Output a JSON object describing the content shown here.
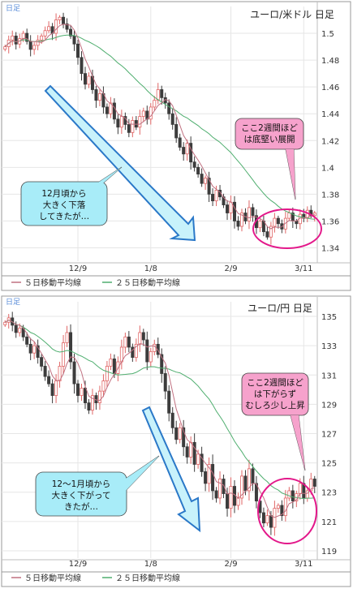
{
  "chart_data": [
    {
      "type": "candlestick",
      "corner_label": "日足",
      "title": "ユーロ/米ドル  日足",
      "ylim": [
        1.33,
        1.52
      ],
      "y_ticks": [
        "1.5",
        "1.48",
        "1.46",
        "1.44",
        "1.42",
        "1.4",
        "1.38",
        "1.36",
        "1.34"
      ],
      "y_tick_values": [
        1.5,
        1.48,
        1.46,
        1.44,
        1.42,
        1.4,
        1.38,
        1.36,
        1.34
      ],
      "x_ticks": [
        "12/9",
        "1/8",
        "2/9",
        "3/11"
      ],
      "x_tick_index": [
        20,
        40,
        62,
        82
      ],
      "n_days": 86,
      "closes": [
        1.49,
        1.495,
        1.498,
        1.492,
        1.496,
        1.5,
        1.494,
        1.488,
        1.491,
        1.495,
        1.498,
        1.502,
        1.505,
        1.5,
        1.51,
        1.512,
        1.507,
        1.503,
        1.498,
        1.492,
        1.482,
        1.47,
        1.462,
        1.468,
        1.458,
        1.45,
        1.455,
        1.445,
        1.44,
        1.448,
        1.436,
        1.43,
        1.438,
        1.432,
        1.426,
        1.435,
        1.43,
        1.438,
        1.442,
        1.436,
        1.445,
        1.45,
        1.458,
        1.452,
        1.448,
        1.44,
        1.432,
        1.422,
        1.415,
        1.41,
        1.418,
        1.404,
        1.4,
        1.395,
        1.388,
        1.392,
        1.38,
        1.375,
        1.383,
        1.378,
        1.372,
        1.366,
        1.374,
        1.36,
        1.356,
        1.366,
        1.36,
        1.37,
        1.364,
        1.355,
        1.36,
        1.352,
        1.348,
        1.356,
        1.362,
        1.358,
        1.354,
        1.362,
        1.366,
        1.36,
        1.358,
        1.365,
        1.362,
        1.368,
        1.364,
        1.366
      ],
      "legend": [
        {
          "label": "５日移動平均線",
          "color": "#c07080"
        },
        {
          "label": "２５日移動平均線",
          "color": "#4fae6f"
        }
      ],
      "callout_left": [
        "12月頃から",
        "大きく下落",
        "してきたが…"
      ],
      "callout_right": [
        "ここ2週間ほど",
        "は底堅い展開"
      ]
    },
    {
      "type": "candlestick",
      "corner_label": "日足",
      "title": "ユーロ/円  日足",
      "ylim": [
        118.5,
        136
      ],
      "y_ticks": [
        "135",
        "133",
        "131",
        "129",
        "127",
        "125",
        "123",
        "121",
        "119"
      ],
      "y_tick_values": [
        135,
        133,
        131,
        129,
        127,
        125,
        123,
        121,
        119
      ],
      "x_ticks": [
        "12/9",
        "1/8",
        "2/9",
        "3/11"
      ],
      "x_tick_index": [
        20,
        40,
        62,
        82
      ],
      "n_days": 86,
      "closes": [
        134.6,
        134.9,
        134.4,
        133.9,
        134.2,
        133.6,
        133.1,
        132.5,
        133.0,
        132.2,
        131.6,
        130.9,
        130.4,
        129.6,
        130.6,
        131.6,
        133.2,
        133.9,
        131.9,
        130.4,
        129.6,
        130.1,
        129.1,
        128.6,
        129.6,
        129.1,
        129.9,
        130.6,
        131.6,
        132.1,
        131.1,
        131.9,
        132.9,
        133.6,
        132.9,
        132.2,
        133.1,
        133.9,
        133.4,
        131.9,
        132.6,
        133.1,
        132.4,
        131.1,
        129.9,
        128.4,
        127.4,
        126.6,
        127.4,
        126.1,
        125.4,
        126.4,
        124.9,
        125.6,
        124.4,
        123.6,
        124.9,
        123.1,
        122.6,
        123.9,
        122.9,
        121.9,
        123.4,
        122.1,
        122.6,
        124.1,
        123.1,
        124.6,
        123.6,
        122.4,
        121.6,
        120.9,
        121.4,
        120.6,
        121.9,
        122.1,
        121.4,
        122.6,
        123.1,
        122.4,
        122.9,
        123.6,
        122.6,
        123.1,
        123.9,
        123.4
      ],
      "legend": [
        {
          "label": "５日移動平均線",
          "color": "#c07080"
        },
        {
          "label": "２５日移動平均線",
          "color": "#4fae6f"
        }
      ],
      "callout_left": [
        "12～1月頃から",
        "大きく下がって",
        "きたが…"
      ],
      "callout_right": [
        "ここ2週間ほど",
        "は下がらず",
        "むしろ少し上昇"
      ]
    }
  ],
  "colors": {
    "up_candle": "#e06666",
    "down_candle": "#3c3c3c",
    "ma5": "#c07080",
    "ma25": "#4fae6f",
    "arrow_fill": "#c8f2fb",
    "arrow_stroke": "#2a78c8",
    "callout_left": "#a8ecf8",
    "callout_right": "#f6a2cc",
    "highlight_ellipse": "#e3188a"
  }
}
